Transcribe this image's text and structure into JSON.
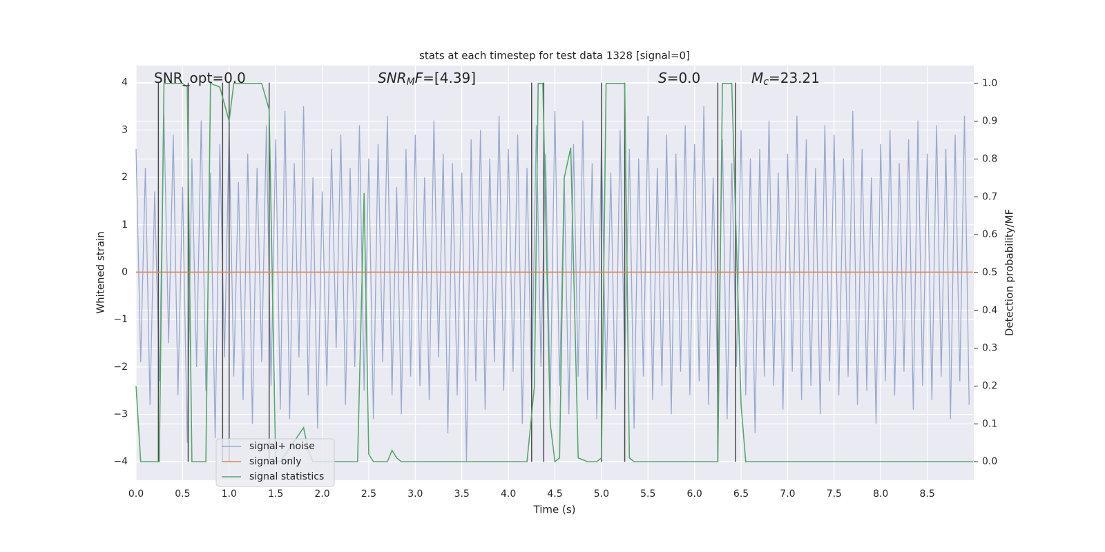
{
  "chart_data": {
    "type": "line",
    "title": "stats at each timestep for test data 1328 [signal=0]",
    "xlabel": "Time (s)",
    "ylabel": "Whitened strain",
    "y2label": "Detection probability/MF",
    "xlim": [
      0,
      9.0
    ],
    "ylim": [
      -4.39,
      4.36
    ],
    "y2lim": [
      -0.049,
      1.047
    ],
    "grid": true,
    "background": "#eaeaf2",
    "legend": "lower left",
    "xticks": [
      {
        "value": 0,
        "label": "0.0"
      },
      {
        "value": 0.5,
        "label": "0.5"
      },
      {
        "value": 1,
        "label": "1.0"
      },
      {
        "value": 1.5,
        "label": "1.5"
      },
      {
        "value": 2,
        "label": "2.0"
      },
      {
        "value": 2.5,
        "label": "2.5"
      },
      {
        "value": 3,
        "label": "3.0"
      },
      {
        "value": 3.5,
        "label": "3.5"
      },
      {
        "value": 4,
        "label": "4.0"
      },
      {
        "value": 4.5,
        "label": "4.5"
      },
      {
        "value": 5,
        "label": "5.0"
      },
      {
        "value": 5.5,
        "label": "5.5"
      },
      {
        "value": 6,
        "label": "6.0"
      },
      {
        "value": 6.5,
        "label": "6.5"
      },
      {
        "value": 7,
        "label": "7.0"
      },
      {
        "value": 7.5,
        "label": "7.5"
      },
      {
        "value": 8,
        "label": "8.0"
      },
      {
        "value": 8.5,
        "label": "8.5"
      }
    ],
    "yticks": [
      {
        "value": -4,
        "label": "−4"
      },
      {
        "value": -3,
        "label": "−3"
      },
      {
        "value": -2,
        "label": "−2"
      },
      {
        "value": -1,
        "label": "−1"
      },
      0,
      1,
      2,
      3,
      4
    ],
    "y2ticks": [
      {
        "value": 0,
        "label": "0.0"
      },
      {
        "value": 0.1,
        "label": "0.1"
      },
      {
        "value": 0.2,
        "label": "0.2"
      },
      {
        "value": 0.3,
        "label": "0.3"
      },
      {
        "value": 0.4,
        "label": "0.4"
      },
      {
        "value": 0.5,
        "label": "0.5"
      },
      {
        "value": 0.6,
        "label": "0.6"
      },
      {
        "value": 0.7,
        "label": "0.7"
      },
      {
        "value": 0.8,
        "label": "0.8"
      },
      {
        "value": 0.9,
        "label": "0.9"
      },
      {
        "value": 1,
        "label": "1.0"
      }
    ],
    "series": [
      {
        "name": "signal+ noise",
        "color": "#97a9cf",
        "x": [
          0,
          0.05,
          0.1,
          0.15,
          0.2,
          0.25,
          0.3,
          0.35,
          0.4,
          0.45,
          0.5,
          0.55,
          0.6,
          0.65,
          0.7,
          0.75,
          0.8,
          0.85,
          0.9,
          0.95,
          1,
          1.05,
          1.1,
          1.15,
          1.2,
          1.25,
          1.3,
          1.35,
          1.4,
          1.45,
          1.5,
          1.55,
          1.6,
          1.65,
          1.7,
          1.75,
          1.8,
          1.85,
          1.9,
          1.95,
          2,
          2.05,
          2.1,
          2.15,
          2.2,
          2.25,
          2.3,
          2.35,
          2.4,
          2.45,
          2.5,
          2.55,
          2.6,
          2.65,
          2.7,
          2.75,
          2.8,
          2.85,
          2.9,
          2.95,
          3,
          3.05,
          3.1,
          3.15,
          3.2,
          3.25,
          3.3,
          3.35,
          3.4,
          3.45,
          3.5,
          3.55,
          3.6,
          3.65,
          3.7,
          3.75,
          3.8,
          3.85,
          3.9,
          3.95,
          4,
          4.05,
          4.1,
          4.15,
          4.2,
          4.25,
          4.3,
          4.35,
          4.4,
          4.45,
          4.5,
          4.55,
          4.6,
          4.65,
          4.7,
          4.75,
          4.8,
          4.85,
          4.9,
          4.95,
          5,
          5.05,
          5.1,
          5.15,
          5.2,
          5.25,
          5.3,
          5.35,
          5.4,
          5.45,
          5.5,
          5.55,
          5.6,
          5.65,
          5.7,
          5.75,
          5.8,
          5.85,
          5.9,
          5.95,
          6,
          6.05,
          6.1,
          6.15,
          6.2,
          6.25,
          6.3,
          6.35,
          6.4,
          6.45,
          6.5,
          6.55,
          6.6,
          6.65,
          6.7,
          6.75,
          6.8,
          6.85,
          6.9,
          6.95,
          7,
          7.05,
          7.1,
          7.15,
          7.2,
          7.25,
          7.3,
          7.35,
          7.4,
          7.45,
          7.5,
          7.55,
          7.6,
          7.65,
          7.7,
          7.75,
          7.8,
          7.85,
          7.9,
          7.95,
          8,
          8.05,
          8.1,
          8.15,
          8.2,
          8.25,
          8.3,
          8.35,
          8.4,
          8.45,
          8.5,
          8.55,
          8.6,
          8.65,
          8.7,
          8.75,
          8.8,
          8.85,
          8.9,
          8.95
        ],
        "values": [
          2.6,
          -1.9,
          2.2,
          -2.8,
          1.7,
          -2.3,
          3.3,
          -1.5,
          2.9,
          -2.6,
          1.8,
          -3.6,
          2.4,
          -2.0,
          3.2,
          -2.5,
          2.1,
          -3.5,
          2.7,
          -1.8,
          3.0,
          -2.2,
          1.9,
          -2.7,
          2.5,
          -3.2,
          2.2,
          -1.9,
          3.1,
          -2.4,
          2.8,
          -2.9,
          3.4,
          -3.1,
          2.3,
          -1.8,
          3.5,
          -2.6,
          2.0,
          -3.3,
          1.7,
          -2.4,
          2.6,
          -1.6,
          2.9,
          -2.8,
          2.2,
          -2.0,
          3.1,
          -2.5,
          2.4,
          -3.1,
          2.7,
          -1.9,
          3.3,
          -2.6,
          1.8,
          -3.0,
          2.6,
          -2.2,
          2.9,
          -2.4,
          2.0,
          -2.7,
          3.2,
          -1.8,
          2.5,
          -3.4,
          2.3,
          -2.6,
          2.1,
          -4.0,
          2.8,
          -2.3,
          3.0,
          -2.9,
          2.4,
          -1.9,
          3.3,
          -2.5,
          2.6,
          -2.1,
          2.9,
          -3.2,
          2.2,
          -2.6,
          3.1,
          -2.0,
          2.5,
          -2.8,
          3.4,
          -2.4,
          2.0,
          -3.0,
          2.7,
          -2.2,
          3.2,
          -2.7,
          2.3,
          -3.1,
          2.8,
          -2.5,
          2.1,
          -2.9,
          3.0,
          -2.0,
          2.6,
          -3.3,
          2.4,
          -2.2,
          3.3,
          -2.7,
          2.2,
          -2.4,
          2.9,
          -3.0,
          2.5,
          -2.1,
          3.1,
          -2.6,
          2.7,
          -2.3,
          3.5,
          -2.8,
          2.0,
          -2.5,
          2.8,
          -3.1,
          2.3,
          -2.0,
          3.0,
          -2.6,
          2.4,
          -3.4,
          2.6,
          -2.2,
          3.2,
          -2.4,
          2.1,
          -2.9,
          2.5,
          -2.1,
          3.3,
          -2.7,
          2.8,
          -2.4,
          2.2,
          -3.0,
          3.1,
          -2.3,
          2.9,
          -2.6,
          2.4,
          -2.2,
          3.4,
          -2.8,
          2.6,
          -2.5,
          2.0,
          -3.2,
          2.7,
          -2.3,
          3.0,
          -2.6,
          2.3,
          -2.1,
          2.8,
          -2.9,
          3.2,
          -2.4,
          2.5,
          -2.7,
          3.1,
          -2.2,
          2.6,
          -3.1,
          2.9,
          -2.3,
          3.3,
          -2.8
        ]
      },
      {
        "name": "signal only",
        "color": "#dd8452",
        "x": [
          0,
          8.99
        ],
        "values": [
          0,
          0
        ]
      },
      {
        "name": "signal statistics",
        "color": "#55a868",
        "axis": "y2",
        "x": [
          0,
          0.05,
          0.25,
          0.3,
          0.5,
          0.55,
          0.6,
          0.7,
          0.75,
          0.8,
          0.9,
          1.0,
          1.05,
          1.35,
          1.43,
          1.5,
          1.55,
          1.8,
          1.85,
          1.9,
          2.38,
          2.45,
          2.5,
          2.55,
          2.7,
          2.75,
          2.8,
          2.85,
          4.2,
          4.28,
          4.32,
          4.37,
          4.45,
          4.5,
          4.55,
          4.6,
          4.67,
          4.75,
          4.85,
          4.95,
          5.0,
          5.05,
          5.25,
          5.3,
          5.35,
          6.25,
          6.3,
          6.4,
          6.5,
          6.55,
          8.99
        ],
        "values": [
          0.2,
          0.0,
          0.0,
          1.0,
          1.0,
          0.99,
          0.0,
          0.0,
          0.0,
          1.0,
          0.99,
          0.9,
          1.0,
          1.0,
          0.93,
          0.0,
          0.0,
          0.09,
          0.03,
          0.0,
          0.0,
          0.71,
          0.02,
          0.0,
          0.0,
          0.03,
          0.01,
          0.0,
          0.0,
          0.2,
          1.0,
          1.0,
          0.1,
          0.0,
          0.01,
          0.75,
          0.83,
          0.01,
          0.0,
          0.0,
          0.01,
          1.0,
          1.0,
          0.01,
          0.0,
          0.0,
          1.0,
          1.0,
          0.15,
          0.0,
          0.0
        ]
      }
    ],
    "vlines": [
      0.24,
      0.56,
      0.93,
      1.0,
      1.43,
      4.25,
      4.38,
      5.0,
      5.25,
      6.25,
      6.44
    ],
    "vline_range": [
      -4,
      4
    ],
    "vline_color": "#4a4a4a",
    "annotations": [
      {
        "parts": [
          {
            "text": "SNR_opt=0.0",
            "style": "normal"
          }
        ]
      },
      {
        "parts": [
          {
            "text": "SNR",
            "style": "italic"
          },
          {
            "text": "M",
            "style": "sub"
          },
          {
            "text": "F",
            "style": "italic"
          },
          {
            "text": "=[4.39]",
            "style": "normal"
          }
        ]
      },
      {
        "parts": [
          {
            "text": "S",
            "style": "italic"
          },
          {
            "text": "=0.0",
            "style": "normal"
          }
        ]
      },
      {
        "parts": [
          {
            "text": "M",
            "style": "italic"
          },
          {
            "text": "c",
            "style": "sub"
          },
          {
            "text": "=23.21",
            "style": "normal"
          }
        ]
      }
    ]
  }
}
